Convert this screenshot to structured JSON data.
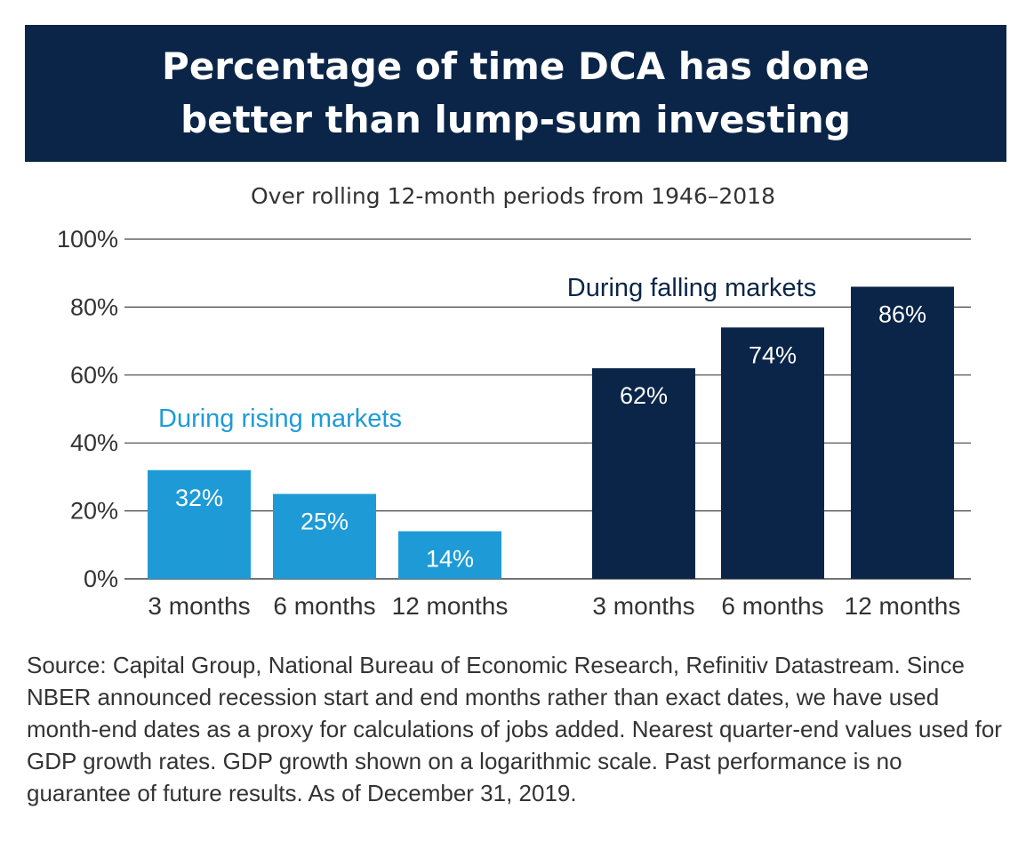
{
  "title": "Percentage of time DCA has done better than lump-sum investing",
  "subtitle": "Over rolling 12-month periods from 1946–2018",
  "source_note": "Source: Capital Group, National Bureau of Economic Research, Refinitiv Datastream. Since NBER announced recession start and end months rather than exact dates, we have used month-end dates as a proxy for calculations of jobs added. Nearest quarter-end values used for GDP growth rates. GDP growth shown on a logarithmic scale. Past performance is no guarantee of future results. As of December 31, 2019.",
  "colors": {
    "banner": "#0b2548",
    "rising": "#1e9bd7",
    "falling": "#0b2548",
    "grid": "#444444",
    "text": "#333333"
  },
  "chart_data": {
    "type": "bar",
    "title": "Percentage of time DCA has done better than lump-sum investing",
    "subtitle": "Over rolling 12-month periods from 1946–2018",
    "ylim": [
      0,
      100
    ],
    "yticks": [
      0,
      20,
      40,
      60,
      80,
      100
    ],
    "ytick_labels": [
      "0%",
      "20%",
      "40%",
      "60%",
      "80%",
      "100%"
    ],
    "grid": true,
    "groups": [
      {
        "name": "During rising markets",
        "color": "#1e9bd7",
        "categories": [
          "3 months",
          "6 months",
          "12 months"
        ],
        "values": [
          32,
          25,
          14
        ],
        "value_labels": [
          "32%",
          "25%",
          "14%"
        ]
      },
      {
        "name": "During falling markets",
        "color": "#0b2548",
        "categories": [
          "3 months",
          "6 months",
          "12 months"
        ],
        "values": [
          62,
          74,
          86
        ],
        "value_labels": [
          "62%",
          "74%",
          "86%"
        ]
      }
    ]
  }
}
